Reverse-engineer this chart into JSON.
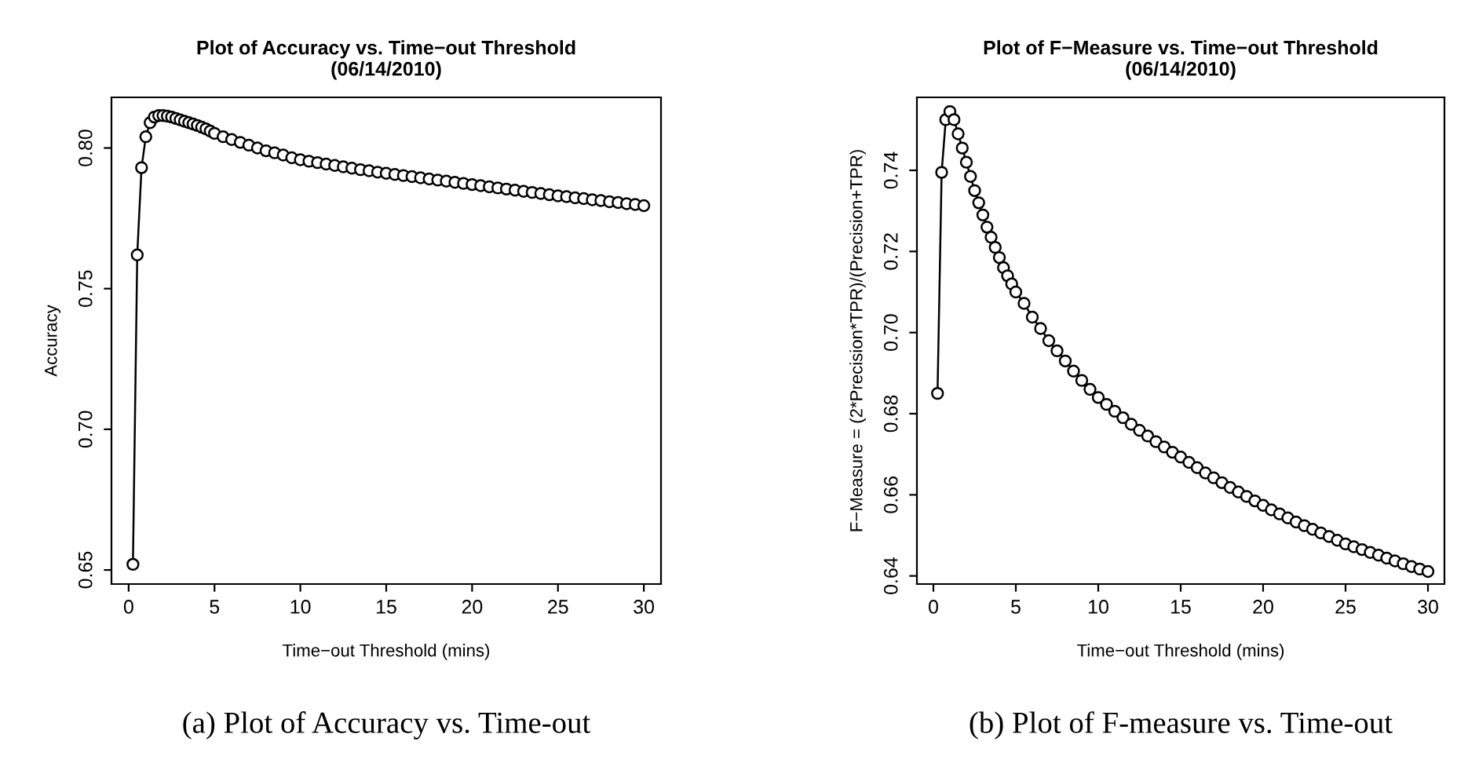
{
  "chart_data": [
    {
      "type": "line",
      "title": "Plot of Accuracy vs. Time−out Threshold\n(06/14/2010)",
      "xlabel": "Time−out Threshold (mins)",
      "ylabel": "Accuracy",
      "marker": "circle",
      "line_style": "solid",
      "grid": false,
      "legend": false,
      "x": [
        0.25,
        0.5,
        0.75,
        1.0,
        1.25,
        1.5,
        1.75,
        2.0,
        2.25,
        2.5,
        2.75,
        3.0,
        3.25,
        3.5,
        3.75,
        4.0,
        4.25,
        4.5,
        4.75,
        5.0,
        5.5,
        6.0,
        6.5,
        7.0,
        7.5,
        8.0,
        8.5,
        9.0,
        9.5,
        10.0,
        10.5,
        11.0,
        11.5,
        12.0,
        12.5,
        13.0,
        13.5,
        14.0,
        14.5,
        15.0,
        15.5,
        16.0,
        16.5,
        17.0,
        17.5,
        18.0,
        18.5,
        19.0,
        19.5,
        20.0,
        20.5,
        21.0,
        21.5,
        22.0,
        22.5,
        23.0,
        23.5,
        24.0,
        24.5,
        25.0,
        25.5,
        26.0,
        26.5,
        27.0,
        27.5,
        28.0,
        28.5,
        29.0,
        29.5,
        30.0
      ],
      "series": [
        {
          "color": "#000000",
          "values": [
            0.652,
            0.762,
            0.793,
            0.804,
            0.809,
            0.811,
            0.8115,
            0.8115,
            0.8113,
            0.811,
            0.8105,
            0.81,
            0.8095,
            0.809,
            0.8085,
            0.808,
            0.8074,
            0.8068,
            0.806,
            0.8052,
            0.804,
            0.803,
            0.802,
            0.801,
            0.8,
            0.799,
            0.7983,
            0.7975,
            0.7965,
            0.7958,
            0.7953,
            0.7948,
            0.7943,
            0.7938,
            0.7933,
            0.7928,
            0.7923,
            0.7919,
            0.7914,
            0.791,
            0.7906,
            0.7902,
            0.7898,
            0.7894,
            0.789,
            0.7886,
            0.7882,
            0.7878,
            0.7874,
            0.787,
            0.7866,
            0.7862,
            0.7858,
            0.7854,
            0.785,
            0.7846,
            0.7842,
            0.7838,
            0.7834,
            0.783,
            0.7827,
            0.7823,
            0.782,
            0.7816,
            0.7813,
            0.7809,
            0.7806,
            0.7802,
            0.7799,
            0.7795
          ]
        }
      ],
      "xlim": [
        -1.0,
        31.0
      ],
      "xticks": [
        0,
        5,
        10,
        15,
        20,
        25,
        30
      ],
      "ylim": [
        0.645,
        0.818
      ],
      "yticks": [
        {
          "value": 0.65,
          "label": "0.65"
        },
        {
          "value": 0.7,
          "label": "0.70"
        },
        {
          "value": 0.75,
          "label": "0.75"
        },
        {
          "value": 0.8,
          "label": "0.80"
        }
      ],
      "annotations": [
        "(a) Plot of Accuracy vs. Time-out"
      ]
    },
    {
      "type": "line",
      "title": "Plot of F−Measure vs. Time−out Threshold\n(06/14/2010)",
      "xlabel": "Time−out Threshold (mins)",
      "ylabel": "F−Measure = (2*Precision*TPR)/(Precision+TPR)",
      "marker": "circle",
      "line_style": "solid",
      "grid": false,
      "legend": false,
      "x": [
        0.25,
        0.5,
        0.75,
        1.0,
        1.25,
        1.5,
        1.75,
        2.0,
        2.25,
        2.5,
        2.75,
        3.0,
        3.25,
        3.5,
        3.75,
        4.0,
        4.25,
        4.5,
        4.75,
        5.0,
        5.5,
        6.0,
        6.5,
        7.0,
        7.5,
        8.0,
        8.5,
        9.0,
        9.5,
        10.0,
        10.5,
        11.0,
        11.5,
        12.0,
        12.5,
        13.0,
        13.5,
        14.0,
        14.5,
        15.0,
        15.5,
        16.0,
        16.5,
        17.0,
        17.5,
        18.0,
        18.5,
        19.0,
        19.5,
        20.0,
        20.5,
        21.0,
        21.5,
        22.0,
        22.5,
        23.0,
        23.5,
        24.0,
        24.5,
        25.0,
        25.5,
        26.0,
        26.5,
        27.0,
        27.5,
        28.0,
        28.5,
        29.0,
        29.5,
        30.0
      ],
      "series": [
        {
          "color": "#000000",
          "values": [
            0.685,
            0.7395,
            0.7525,
            0.7545,
            0.7525,
            0.749,
            0.7455,
            0.742,
            0.7385,
            0.735,
            0.732,
            0.729,
            0.726,
            0.7235,
            0.721,
            0.7185,
            0.716,
            0.714,
            0.712,
            0.71,
            0.7072,
            0.7038,
            0.701,
            0.698,
            0.6955,
            0.693,
            0.6905,
            0.6882,
            0.686,
            0.684,
            0.6823,
            0.6806,
            0.679,
            0.6774,
            0.6759,
            0.6745,
            0.6731,
            0.6718,
            0.6705,
            0.6693,
            0.668,
            0.6667,
            0.6654,
            0.6642,
            0.663,
            0.6618,
            0.6607,
            0.6596,
            0.6585,
            0.6574,
            0.6563,
            0.6553,
            0.6543,
            0.6533,
            0.6524,
            0.6515,
            0.6506,
            0.6497,
            0.6488,
            0.6479,
            0.6472,
            0.6465,
            0.6458,
            0.6451,
            0.6444,
            0.6437,
            0.643,
            0.6423,
            0.6417,
            0.6411
          ]
        }
      ],
      "xlim": [
        -1.0,
        31.0
      ],
      "xticks": [
        0,
        5,
        10,
        15,
        20,
        25,
        30
      ],
      "ylim": [
        0.638,
        0.758
      ],
      "yticks": [
        0.64,
        0.66,
        0.68,
        {
          "value": 0.7,
          "label": "0.70"
        },
        0.72,
        0.74
      ],
      "annotations": [
        "(b) Plot of F-measure vs. Time-out"
      ]
    }
  ]
}
